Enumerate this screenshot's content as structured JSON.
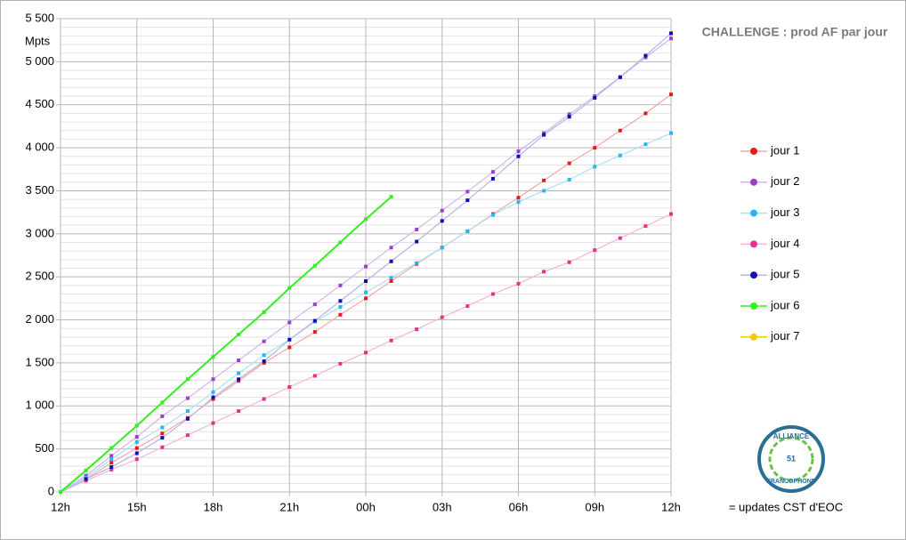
{
  "chart_data": {
    "type": "line",
    "title": "CHALLENGE : prod AF par jour",
    "y_label": "Mpts",
    "note": "= updates CST d'EOC",
    "logo": {
      "top": "ALLIANCE",
      "number": "51",
      "bottom": "FRANCOPHONE"
    },
    "categories": [
      "12h",
      null,
      null,
      "15h",
      null,
      null,
      "18h",
      null,
      null,
      "21h",
      null,
      null,
      "00h",
      null,
      null,
      "03h",
      null,
      null,
      "06h",
      null,
      null,
      "09h",
      null,
      null,
      "12h"
    ],
    "ylim": [
      0,
      5500
    ],
    "yticks": [
      0,
      500,
      {
        "value": 1000,
        "label": "1 000"
      },
      {
        "value": 1500,
        "label": "1 500"
      },
      {
        "value": 2000,
        "label": "2 000"
      },
      {
        "value": 2500,
        "label": "2 500"
      },
      {
        "value": 3000,
        "label": "3 000"
      },
      {
        "value": 3500,
        "label": "3 500"
      },
      {
        "value": 4000,
        "label": "4 000"
      },
      {
        "value": 4500,
        "label": "4 500"
      },
      {
        "value": 5000,
        "label": "5 000"
      },
      {
        "value": 5500,
        "label": "5 500"
      }
    ],
    "grid": true,
    "minor_grid": true,
    "legend": "right",
    "series": [
      {
        "name": "jour 1",
        "color": "#e8191a",
        "line_color": "#f4a8a8",
        "values": [
          0,
          150,
          340,
          510,
          680,
          860,
          1080,
          1290,
          1500,
          1680,
          1860,
          2060,
          2250,
          2450,
          2650,
          2840,
          3030,
          3230,
          3420,
          3620,
          3820,
          4000,
          4200,
          4400,
          4620
        ]
      },
      {
        "name": "jour 2",
        "color": "#9a3fd0",
        "line_color": "#d4b4ee",
        "values": [
          0,
          190,
          420,
          640,
          880,
          1090,
          1310,
          1530,
          1750,
          1970,
          2180,
          2400,
          2620,
          2840,
          3050,
          3270,
          3490,
          3720,
          3960,
          4170,
          4390,
          4600,
          4820,
          5050,
          5270
        ]
      },
      {
        "name": "jour 3",
        "color": "#22b8f0",
        "line_color": "#a8e0f8",
        "values": [
          0,
          170,
          380,
          580,
          750,
          940,
          1160,
          1380,
          1590,
          1770,
          1980,
          2150,
          2320,
          2490,
          2660,
          2840,
          3030,
          3220,
          3370,
          3500,
          3630,
          3780,
          3910,
          4040,
          4170
        ]
      },
      {
        "name": "jour 4",
        "color": "#e8308a",
        "line_color": "#f6b4d4",
        "values": [
          0,
          130,
          260,
          380,
          520,
          660,
          800,
          940,
          1080,
          1220,
          1350,
          1490,
          1620,
          1760,
          1890,
          2030,
          2160,
          2300,
          2420,
          2560,
          2670,
          2810,
          2950,
          3090,
          3230
        ]
      },
      {
        "name": "jour 5",
        "color": "#1010b0",
        "line_color": "#b4b4e8",
        "values": [
          0,
          150,
          290,
          450,
          630,
          850,
          1100,
          1310,
          1520,
          1770,
          1990,
          2220,
          2450,
          2680,
          2910,
          3150,
          3390,
          3640,
          3900,
          4150,
          4360,
          4580,
          4820,
          5070,
          5330
        ]
      },
      {
        "name": "jour 6",
        "color": "#33ee22",
        "line_color": "#33ee22",
        "values": [
          0,
          250,
          510,
          770,
          1040,
          1310,
          1570,
          1830,
          2090,
          2370,
          2630,
          2900,
          3170,
          3430,
          null,
          null,
          null,
          null,
          null,
          null,
          null,
          null,
          null,
          null,
          null
        ]
      },
      {
        "name": "jour 7",
        "color": "#f5c800",
        "line_color": "#f5c800",
        "values": [
          null,
          null,
          null,
          null,
          null,
          null,
          null,
          null,
          null,
          null,
          null,
          null,
          null,
          null,
          null,
          null,
          null,
          null,
          null,
          null,
          null,
          null,
          null,
          null,
          null
        ]
      }
    ]
  }
}
